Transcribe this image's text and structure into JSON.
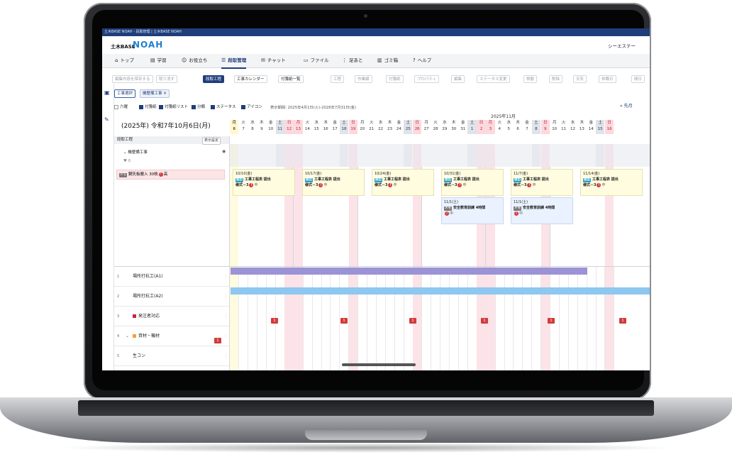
{
  "window_title": "土木BASE NOAH - 段取管理 | 土木BASE NOAH",
  "brand": {
    "small": "土木BASE",
    "big": "NOAH"
  },
  "company": "シーエステー",
  "nav": [
    {
      "label": "トップ",
      "icon": "home-icon"
    },
    {
      "label": "学習",
      "icon": "book-icon"
    },
    {
      "label": "お役立ち",
      "icon": "users-icon"
    },
    {
      "label": "段取管理",
      "icon": "list-icon",
      "active": true
    },
    {
      "label": "チャット",
      "icon": "chat-icon"
    },
    {
      "label": "ファイル",
      "icon": "file-icon"
    },
    {
      "label": "足あと",
      "icon": "footprint-icon"
    },
    {
      "label": "ゴミ箱",
      "icon": "trash-icon"
    },
    {
      "label": "ヘルプ",
      "icon": "help-icon"
    }
  ],
  "toolbar": {
    "save": "編集内容を保存する",
    "undo": "取り消す",
    "view_process": "段取工程",
    "view_calendar": "工事カレンダー",
    "view_notes": "付箋紙一覧",
    "process": "工程",
    "work_line": "作業線",
    "sticky": "付箋紙",
    "property": "プロパティ",
    "edit": "編集",
    "status_change": "ステータス変更",
    "move": "移動",
    "delete": "削除",
    "weather": "天気",
    "holiday": "休職日",
    "day_off": "閉日"
  },
  "filters": {
    "select_project": "工事選択",
    "project_chip": "機整備工事"
  },
  "checks": [
    {
      "label": "六曜",
      "checked": false
    },
    {
      "label": "付箋紙",
      "checked": true
    },
    {
      "label": "付箋紙リスト",
      "checked": true
    },
    {
      "label": "分類",
      "checked": true
    },
    {
      "label": "ステータス",
      "checked": true
    },
    {
      "label": "アイコン",
      "checked": true
    }
  ],
  "period": "表示期間: 2025年4月1日(火)-2026年7月31日(金)",
  "prev_month": "« 先月",
  "month_label": "2025年11月",
  "current_date": "(2025年) 令和7年10月6日(月)",
  "days": [
    {
      "w": "月",
      "d": "6",
      "k": "today"
    },
    {
      "w": "火",
      "d": "7",
      "k": ""
    },
    {
      "w": "水",
      "d": "8",
      "k": ""
    },
    {
      "w": "木",
      "d": "9",
      "k": ""
    },
    {
      "w": "金",
      "d": "10",
      "k": ""
    },
    {
      "w": "土",
      "d": "11",
      "k": "sat"
    },
    {
      "w": "日",
      "d": "12",
      "k": "sun"
    },
    {
      "w": "月",
      "d": "13",
      "k": "sun"
    },
    {
      "w": "火",
      "d": "14",
      "k": ""
    },
    {
      "w": "水",
      "d": "15",
      "k": ""
    },
    {
      "w": "木",
      "d": "16",
      "k": ""
    },
    {
      "w": "金",
      "d": "17",
      "k": ""
    },
    {
      "w": "土",
      "d": "18",
      "k": "sat"
    },
    {
      "w": "日",
      "d": "19",
      "k": "sun"
    },
    {
      "w": "月",
      "d": "20",
      "k": ""
    },
    {
      "w": "火",
      "d": "21",
      "k": ""
    },
    {
      "w": "水",
      "d": "22",
      "k": ""
    },
    {
      "w": "木",
      "d": "23",
      "k": ""
    },
    {
      "w": "金",
      "d": "24",
      "k": ""
    },
    {
      "w": "土",
      "d": "25",
      "k": "sat"
    },
    {
      "w": "日",
      "d": "26",
      "k": "sun"
    },
    {
      "w": "月",
      "d": "27",
      "k": ""
    },
    {
      "w": "火",
      "d": "28",
      "k": ""
    },
    {
      "w": "水",
      "d": "29",
      "k": ""
    },
    {
      "w": "木",
      "d": "30",
      "k": ""
    },
    {
      "w": "金",
      "d": "31",
      "k": ""
    },
    {
      "w": "土",
      "d": "1",
      "k": "sat"
    },
    {
      "w": "日",
      "d": "2",
      "k": "sun"
    },
    {
      "w": "月",
      "d": "3",
      "k": "sun"
    },
    {
      "w": "火",
      "d": "4",
      "k": ""
    },
    {
      "w": "水",
      "d": "5",
      "k": ""
    },
    {
      "w": "木",
      "d": "6",
      "k": ""
    },
    {
      "w": "金",
      "d": "7",
      "k": ""
    },
    {
      "w": "土",
      "d": "8",
      "k": "sat"
    },
    {
      "w": "日",
      "d": "9",
      "k": "sun"
    },
    {
      "w": "月",
      "d": "10",
      "k": ""
    },
    {
      "w": "火",
      "d": "11",
      "k": ""
    },
    {
      "w": "水",
      "d": "12",
      "k": ""
    },
    {
      "w": "木",
      "d": "13",
      "k": ""
    },
    {
      "w": "金",
      "d": "14",
      "k": ""
    },
    {
      "w": "土",
      "d": "15",
      "k": "sat"
    },
    {
      "w": "日",
      "d": "16",
      "k": "sun"
    }
  ],
  "section": {
    "title": "段取工程",
    "show_settings": "表示設定",
    "group": "機整備工事",
    "likes": "0"
  },
  "memo": {
    "tag": "メモ",
    "text": "鋼矢板搬入 30枚",
    "priority": "高"
  },
  "notes": [
    {
      "date": "10/10(金)",
      "tag": "提出",
      "title": "工事工程表 提出",
      "sub": "様式－3",
      "priority": "中"
    },
    {
      "date": "10/17(金)",
      "tag": "提出",
      "title": "工事工程表 提出",
      "sub": "様式－3",
      "priority": "中"
    },
    {
      "date": "10/24(金)",
      "tag": "提出",
      "title": "工事工程表 提出",
      "sub": "様式－3",
      "priority": "中"
    },
    {
      "date": "10/31(金)",
      "tag": "提出",
      "title": "工事工程表 提出",
      "sub": "様式－3",
      "priority": "中"
    },
    {
      "date": "11/7(金)",
      "tag": "提出",
      "title": "工事工程表 提出",
      "sub": "様式－3",
      "priority": "中"
    },
    {
      "date": "11/14(金)",
      "tag": "提出",
      "title": "工事工程表 提出",
      "sub": "様式－3",
      "priority": "中"
    },
    {
      "date": "11/1(土)",
      "tag": "メモ",
      "title": "安全教育訓練 4時間",
      "sub": "",
      "priority": "中"
    },
    {
      "date": "11/1(土)",
      "tag": "メモ",
      "title": "安全教育訓練 4時間",
      "sub": "",
      "priority": "中"
    }
  ],
  "rows": [
    {
      "num": "1",
      "label": "場所打杭工(A1)"
    },
    {
      "num": "2",
      "label": "場所打杭工(A2)"
    },
    {
      "num": "3",
      "label": "発注者対応"
    },
    {
      "num": "4",
      "label": "資材・機材"
    },
    {
      "num": "5",
      "label": "生コン"
    }
  ],
  "flag_value": "1",
  "colors": {
    "accent": "#1f3d7a",
    "purple_bar": "#9b93d6",
    "blue_bar": "#8ec7ef",
    "sun": "#fbd9df",
    "today": "#fff7cf"
  }
}
